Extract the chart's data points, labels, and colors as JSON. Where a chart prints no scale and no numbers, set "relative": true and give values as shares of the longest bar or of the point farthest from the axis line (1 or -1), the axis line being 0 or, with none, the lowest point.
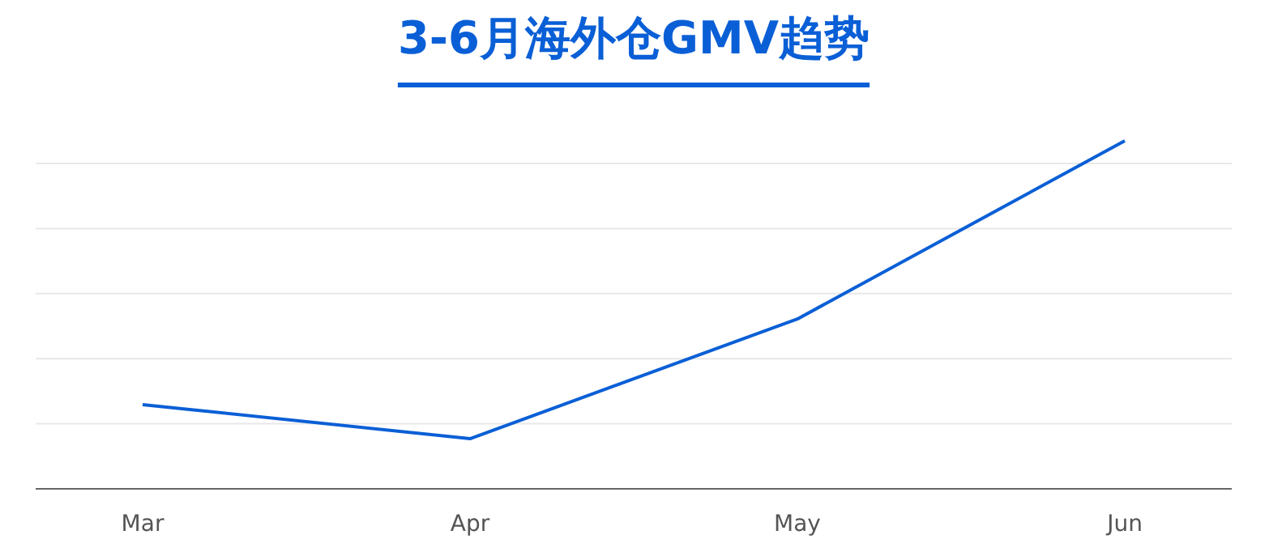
{
  "chart_data": {
    "type": "line",
    "title": "3-6月海外仓GMV趋势",
    "relative": true,
    "grid": "y",
    "categories": [
      "Mar",
      "Apr",
      "May",
      "Jun"
    ],
    "series": [
      {
        "color": "#0a5fd6",
        "values": [
          0.242,
          0.144,
          0.488,
          1
        ]
      }
    ]
  }
}
